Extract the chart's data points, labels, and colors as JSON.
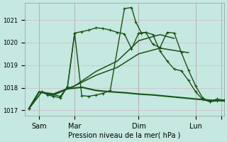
{
  "bg_color": "#c5e8e0",
  "grid_color": "#d4b8c8",
  "line_dark": "#1a5218",
  "xlabel": "Pression niveau de la mer( hPa )",
  "ylim": [
    1016.75,
    1021.75
  ],
  "yticks": [
    1017,
    1018,
    1019,
    1020,
    1021
  ],
  "ytick_labels": [
    "1017",
    "1018",
    "1019",
    "1020",
    "1021"
  ],
  "xmin": 0.0,
  "xmax": 14.0,
  "xtick_pos": [
    1.0,
    3.5,
    8.0,
    12.0,
    13.8
  ],
  "xtick_lab": [
    "Sam",
    "Mar",
    "Dim",
    "Lun",
    ""
  ],
  "vline_pos": [
    1.0,
    3.5,
    8.0,
    12.0,
    13.8
  ],
  "line1_x": [
    0.3,
    1.0,
    2.0,
    3.5,
    5.0,
    6.5,
    8.0,
    9.5,
    10.5,
    11.5
  ],
  "line1_y": [
    1017.1,
    1017.82,
    1017.72,
    1018.08,
    1018.55,
    1018.9,
    1019.5,
    1019.75,
    1019.65,
    1019.55
  ],
  "line2_x": [
    0.3,
    1.0,
    2.0,
    3.5,
    5.0,
    6.5,
    8.0,
    9.5,
    10.5
  ],
  "line2_y": [
    1017.1,
    1017.82,
    1017.72,
    1018.08,
    1018.72,
    1019.18,
    1020.08,
    1020.35,
    1020.18
  ],
  "line3_x": [
    0.3,
    1.0,
    2.0,
    3.0,
    4.0,
    5.0,
    6.0,
    7.0,
    8.0,
    9.0,
    10.0,
    11.0,
    12.0,
    13.0,
    14.0
  ],
  "line3_y": [
    1017.08,
    1017.82,
    1017.68,
    1017.95,
    1018.02,
    1017.88,
    1017.82,
    1017.78,
    1017.72,
    1017.68,
    1017.62,
    1017.56,
    1017.5,
    1017.45,
    1017.42
  ],
  "line4_x": [
    0.3,
    1.2,
    1.8,
    2.5,
    3.0,
    3.5,
    4.0,
    4.5,
    5.0,
    5.5,
    6.0,
    6.5,
    7.0,
    7.5,
    8.0,
    8.5,
    9.0,
    9.5,
    10.0,
    10.5,
    11.0,
    11.5,
    12.0,
    12.5,
    13.0,
    13.5,
    14.0
  ],
  "line4_y": [
    1017.08,
    1017.82,
    1017.72,
    1017.62,
    1018.05,
    1020.42,
    1020.48,
    1020.55,
    1020.65,
    1020.62,
    1020.55,
    1020.45,
    1020.38,
    1019.72,
    1020.42,
    1020.45,
    1020.35,
    1019.62,
    1019.18,
    1018.82,
    1018.75,
    1018.32,
    1017.82,
    1017.48,
    1017.38,
    1017.42,
    1017.45
  ],
  "line5_x": [
    0.3,
    1.2,
    1.6,
    2.0,
    2.5,
    3.0,
    3.5,
    4.0,
    4.5,
    5.0,
    5.5,
    6.0,
    7.0,
    7.5,
    7.8,
    8.2,
    8.5,
    9.0,
    9.5,
    10.0,
    10.5,
    11.0,
    11.5,
    12.0,
    12.5,
    13.0,
    13.5,
    14.0
  ],
  "line5_y": [
    1017.08,
    1017.82,
    1017.68,
    1017.62,
    1017.55,
    1018.05,
    1020.42,
    1017.65,
    1017.62,
    1017.68,
    1017.75,
    1017.88,
    1021.5,
    1021.55,
    1020.9,
    1020.42,
    1020.45,
    1019.92,
    1019.78,
    1020.45,
    1020.42,
    1019.55,
    1018.78,
    1018.08,
    1017.55,
    1017.38,
    1017.5,
    1017.45
  ]
}
